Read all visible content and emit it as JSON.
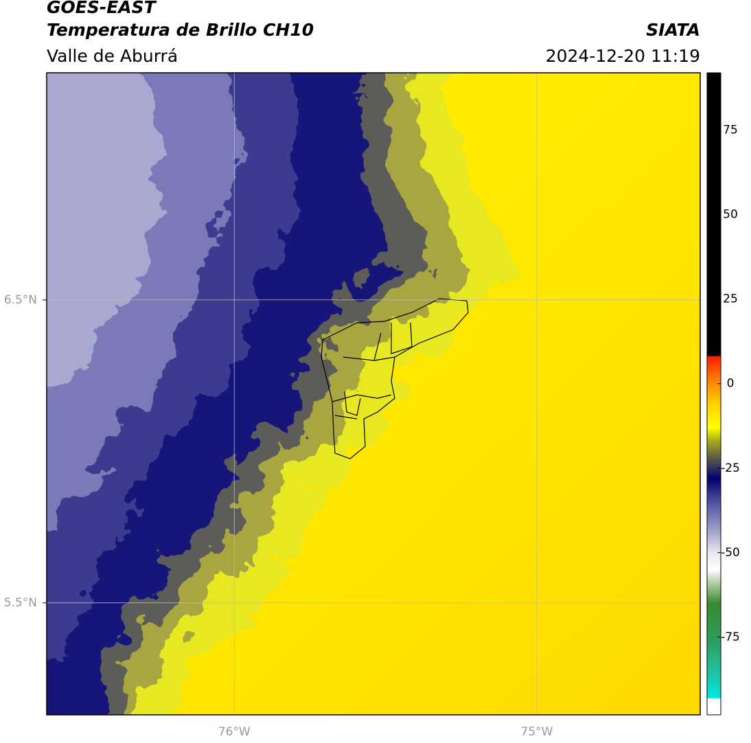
{
  "header": {
    "title": "GOES-EAST",
    "subtitle": "Temperatura de Brillo CH10",
    "region": "Valle de Aburrá",
    "source": "SIATA",
    "timestamp": "2024-12-20 11:19"
  },
  "map": {
    "xlim": [
      -76.62,
      -74.46
    ],
    "ylim": [
      5.13,
      7.25
    ],
    "xticks": [
      {
        "value": -76,
        "label": "76°W"
      },
      {
        "value": -75,
        "label": "75°W"
      }
    ],
    "yticks": [
      {
        "value": 6.5,
        "label": "6.5°N"
      },
      {
        "value": 5.5,
        "label": "5.5°N"
      }
    ],
    "grid": true
  },
  "colorbar": {
    "lim": [
      -98,
      92
    ],
    "ticks": [
      75,
      50,
      25,
      0,
      -25,
      -50,
      -75
    ],
    "stops": [
      {
        "value": -98,
        "color": "#ffffff"
      },
      {
        "value": -93.2,
        "color": "#ffffff"
      },
      {
        "value": -93,
        "color": "#00e8e0"
      },
      {
        "value": -85,
        "color": "#20c0a0"
      },
      {
        "value": -75,
        "color": "#2e9a55"
      },
      {
        "value": -65,
        "color": "#3a8a30"
      },
      {
        "value": -60,
        "color": "#a0c090"
      },
      {
        "value": -55,
        "color": "#ffffff"
      },
      {
        "value": -50,
        "color": "#e8e8ee"
      },
      {
        "value": -45,
        "color": "#b0b0d0"
      },
      {
        "value": -35,
        "color": "#5050a0"
      },
      {
        "value": -28,
        "color": "#000070"
      },
      {
        "value": -25,
        "color": "#303060"
      },
      {
        "value": -21,
        "color": "#6a6a40"
      },
      {
        "value": -17,
        "color": "#a8a820"
      },
      {
        "value": -13,
        "color": "#ffff00"
      },
      {
        "value": -6,
        "color": "#ffd000"
      },
      {
        "value": 1,
        "color": "#ff8000"
      },
      {
        "value": 8,
        "color": "#ff2000"
      },
      {
        "value": 8.3,
        "color": "#000000"
      },
      {
        "value": 92,
        "color": "#000000"
      }
    ]
  }
}
